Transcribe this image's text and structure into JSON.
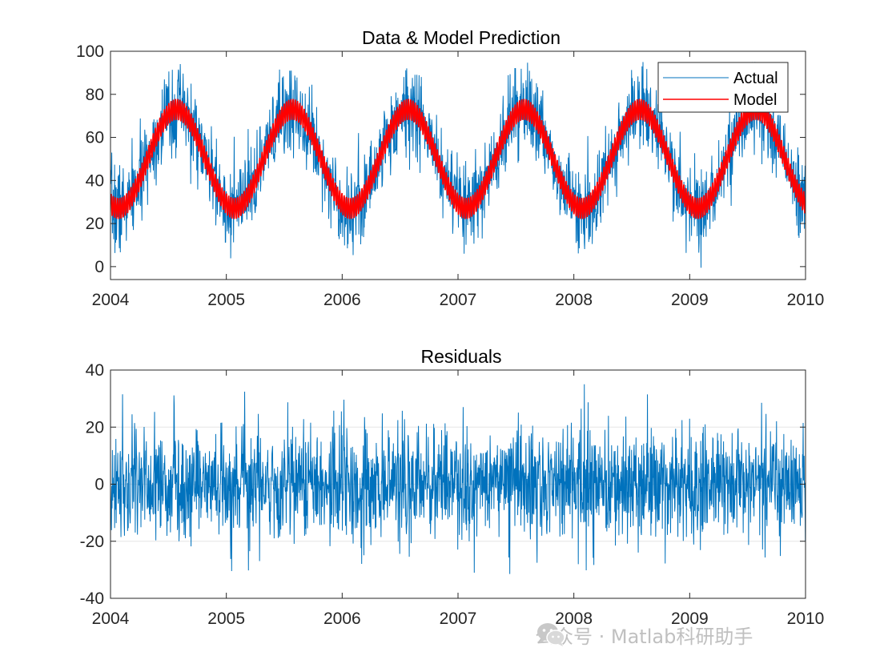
{
  "chart_data": [
    {
      "type": "line",
      "title": "Data & Model Prediction",
      "xlabel": "",
      "ylabel": "",
      "xlim": [
        2004,
        2010
      ],
      "ylim": [
        -6,
        100
      ],
      "x_ticks": [
        2004,
        2005,
        2006,
        2007,
        2008,
        2009,
        2010
      ],
      "y_ticks": [
        0,
        20,
        40,
        60,
        80,
        100
      ],
      "grid": false,
      "legend": "top-right",
      "series": [
        {
          "name": "Actual",
          "color": "#0072BD",
          "description_values": {
            "seasonal_mean": 50,
            "seasonal_amplitude": 23,
            "peak_offset_year": 0.57,
            "noise_sd": 9,
            "min_observed": -4,
            "max_observed": 95
          }
        },
        {
          "name": "Model",
          "color": "#FF0000",
          "description_values": {
            "seasonal_mean": 50,
            "seasonal_amplitude": 23,
            "peak_offset_year": 0.57,
            "band_halfwidth": 5,
            "weekly_cycle": 7
          }
        }
      ]
    },
    {
      "type": "line",
      "title": "Residuals",
      "xlabel": "",
      "ylabel": "",
      "xlim": [
        2004,
        2010
      ],
      "ylim": [
        -40,
        40
      ],
      "x_ticks": [
        2004,
        2005,
        2006,
        2007,
        2008,
        2009,
        2010
      ],
      "y_ticks": [
        -40,
        -20,
        0,
        20,
        40
      ],
      "grid": true,
      "series": [
        {
          "name": "Residuals",
          "color": "#0072BD",
          "description_values": {
            "mean": 0,
            "noise_sd": 9,
            "min_observed": -33,
            "max_observed": 35
          }
        }
      ]
    }
  ],
  "watermark": {
    "text": "公众号 · Matlab科研助手",
    "icon": "wechat-icon"
  }
}
